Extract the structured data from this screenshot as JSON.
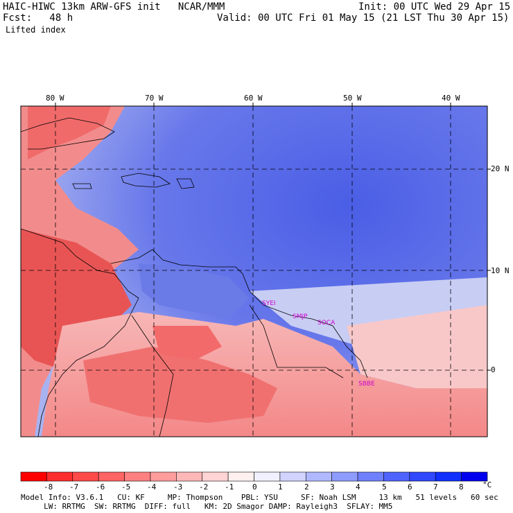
{
  "header": {
    "line1_left": "HAIC-HIWC 13km ARW-GFS init   NCAR/MMM",
    "line1_right": "Init: 00 UTC Wed 29 Apr 15",
    "line2_left": "Fcst:   48 h",
    "line2_right": "Valid: 00 UTC Fri 01 May 15 (21 LST Thu 30 Apr 15)",
    "field": "Lifted index"
  },
  "map": {
    "lon_labels": [
      "80 W",
      "70 W",
      "60 W",
      "50 W",
      "40 W"
    ],
    "lat_labels": [
      "20 N",
      "10 N",
      "0"
    ],
    "stations": [
      "SYEI",
      "SMJP",
      "SOCA",
      "SBBE"
    ],
    "colors": {
      "strong_negative": "#e83a3a",
      "negative": "#f07a7a",
      "weak_negative": "#f8c0c0",
      "neutral": "#ffffff",
      "weak_positive": "#c8cdf4",
      "positive": "#8a96ec",
      "strong_positive": "#4a5ee6",
      "station": "#cc00cc"
    }
  },
  "colorbar": {
    "labels": [
      "-8",
      "-7",
      "-6",
      "-5",
      "-4",
      "-3",
      "-2",
      "-1",
      "0",
      "1",
      "2",
      "3",
      "4",
      "5",
      "6",
      "7",
      "8"
    ],
    "unit": "°C",
    "colors": [
      "#ff0000",
      "#ff2e2e",
      "#ff4a4a",
      "#ff6464",
      "#ff8080",
      "#ff9c9c",
      "#ffb8b8",
      "#ffd4d4",
      "#fff0f0",
      "#f0f0ff",
      "#d0d4ff",
      "#b0b8ff",
      "#8f9cff",
      "#6f80ff",
      "#4f64ff",
      "#3048ff",
      "#1030ff",
      "#0000ee"
    ]
  },
  "footer": {
    "line1": "Model Info: V3.6.1   CU: KF     MP: Thompson    PBL: YSU     SF: Noah LSM     13 km   51 levels   60 sec",
    "line2": "     LW: RRTMG  SW: RRTMG  DIFF: full   KM: 2D Smagor DAMP: Rayleigh3  SFLAY: MM5"
  }
}
